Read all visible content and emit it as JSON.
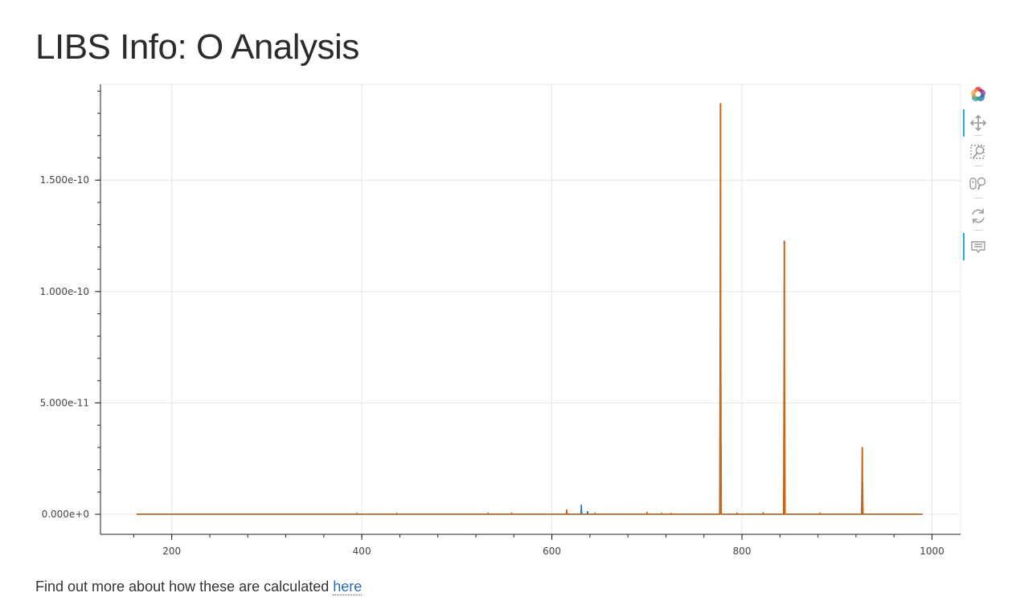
{
  "page": {
    "title": "LIBS Info: O Analysis",
    "footer_text": "Find out more about how these are calculated ",
    "footer_link": "here"
  },
  "toolbar": {
    "tools": [
      "bokeh-logo",
      "pan-tool",
      "box-zoom-tool",
      "wheel-zoom-tool",
      "reset-tool",
      "hover-tool"
    ]
  },
  "colors": {
    "series_orange": "#c8661a",
    "series_blue": "#1f77b4",
    "grid": "#e5e5e5",
    "toolbar_active": "#26aae1"
  },
  "chart_data": {
    "type": "line",
    "title": "",
    "xlabel": "",
    "ylabel": "",
    "xlim": [
      125,
      1030
    ],
    "ylim": [
      -9e-12,
      1.93e-10
    ],
    "x_ticks": [
      200,
      400,
      600,
      800,
      1000
    ],
    "y_ticks": [
      0,
      5e-11,
      1e-10,
      1.5e-10
    ],
    "x_tick_labels": [
      "200",
      "400",
      "600",
      "800",
      "1000"
    ],
    "y_tick_labels": [
      "0.000e+0",
      "5.000e-11",
      "1.000e-10",
      "1.500e-10"
    ],
    "grid": true,
    "x_range": [
      163,
      990
    ],
    "series": [
      {
        "color": "#1f77b4",
        "peaks": [
          {
            "x": 615.6,
            "y": 1.5e-12
          },
          {
            "x": 631.0,
            "y": 4.2e-12
          },
          {
            "x": 637.5,
            "y": 1.2e-12
          },
          {
            "x": 777.3,
            "y": 1.8e-11
          },
          {
            "x": 844.6,
            "y": 8e-12
          }
        ]
      },
      {
        "color": "#c8661a",
        "peaks": [
          {
            "x": 394.7,
            "y": 5e-13
          },
          {
            "x": 436.8,
            "y": 5e-13
          },
          {
            "x": 532.9,
            "y": 6e-13
          },
          {
            "x": 557.6,
            "y": 6e-13
          },
          {
            "x": 615.6,
            "y": 2e-12
          },
          {
            "x": 645.4,
            "y": 6e-13
          },
          {
            "x": 700.2,
            "y": 9e-13
          },
          {
            "x": 715.7,
            "y": 5e-13
          },
          {
            "x": 725.4,
            "y": 5e-13
          },
          {
            "x": 777.4,
            "y": 1.844e-10
          },
          {
            "x": 794.8,
            "y": 6e-13
          },
          {
            "x": 822.2,
            "y": 7e-13
          },
          {
            "x": 844.6,
            "y": 1.227e-10
          },
          {
            "x": 882.0,
            "y": 6e-13
          },
          {
            "x": 926.6,
            "y": 3e-11
          }
        ]
      }
    ]
  }
}
